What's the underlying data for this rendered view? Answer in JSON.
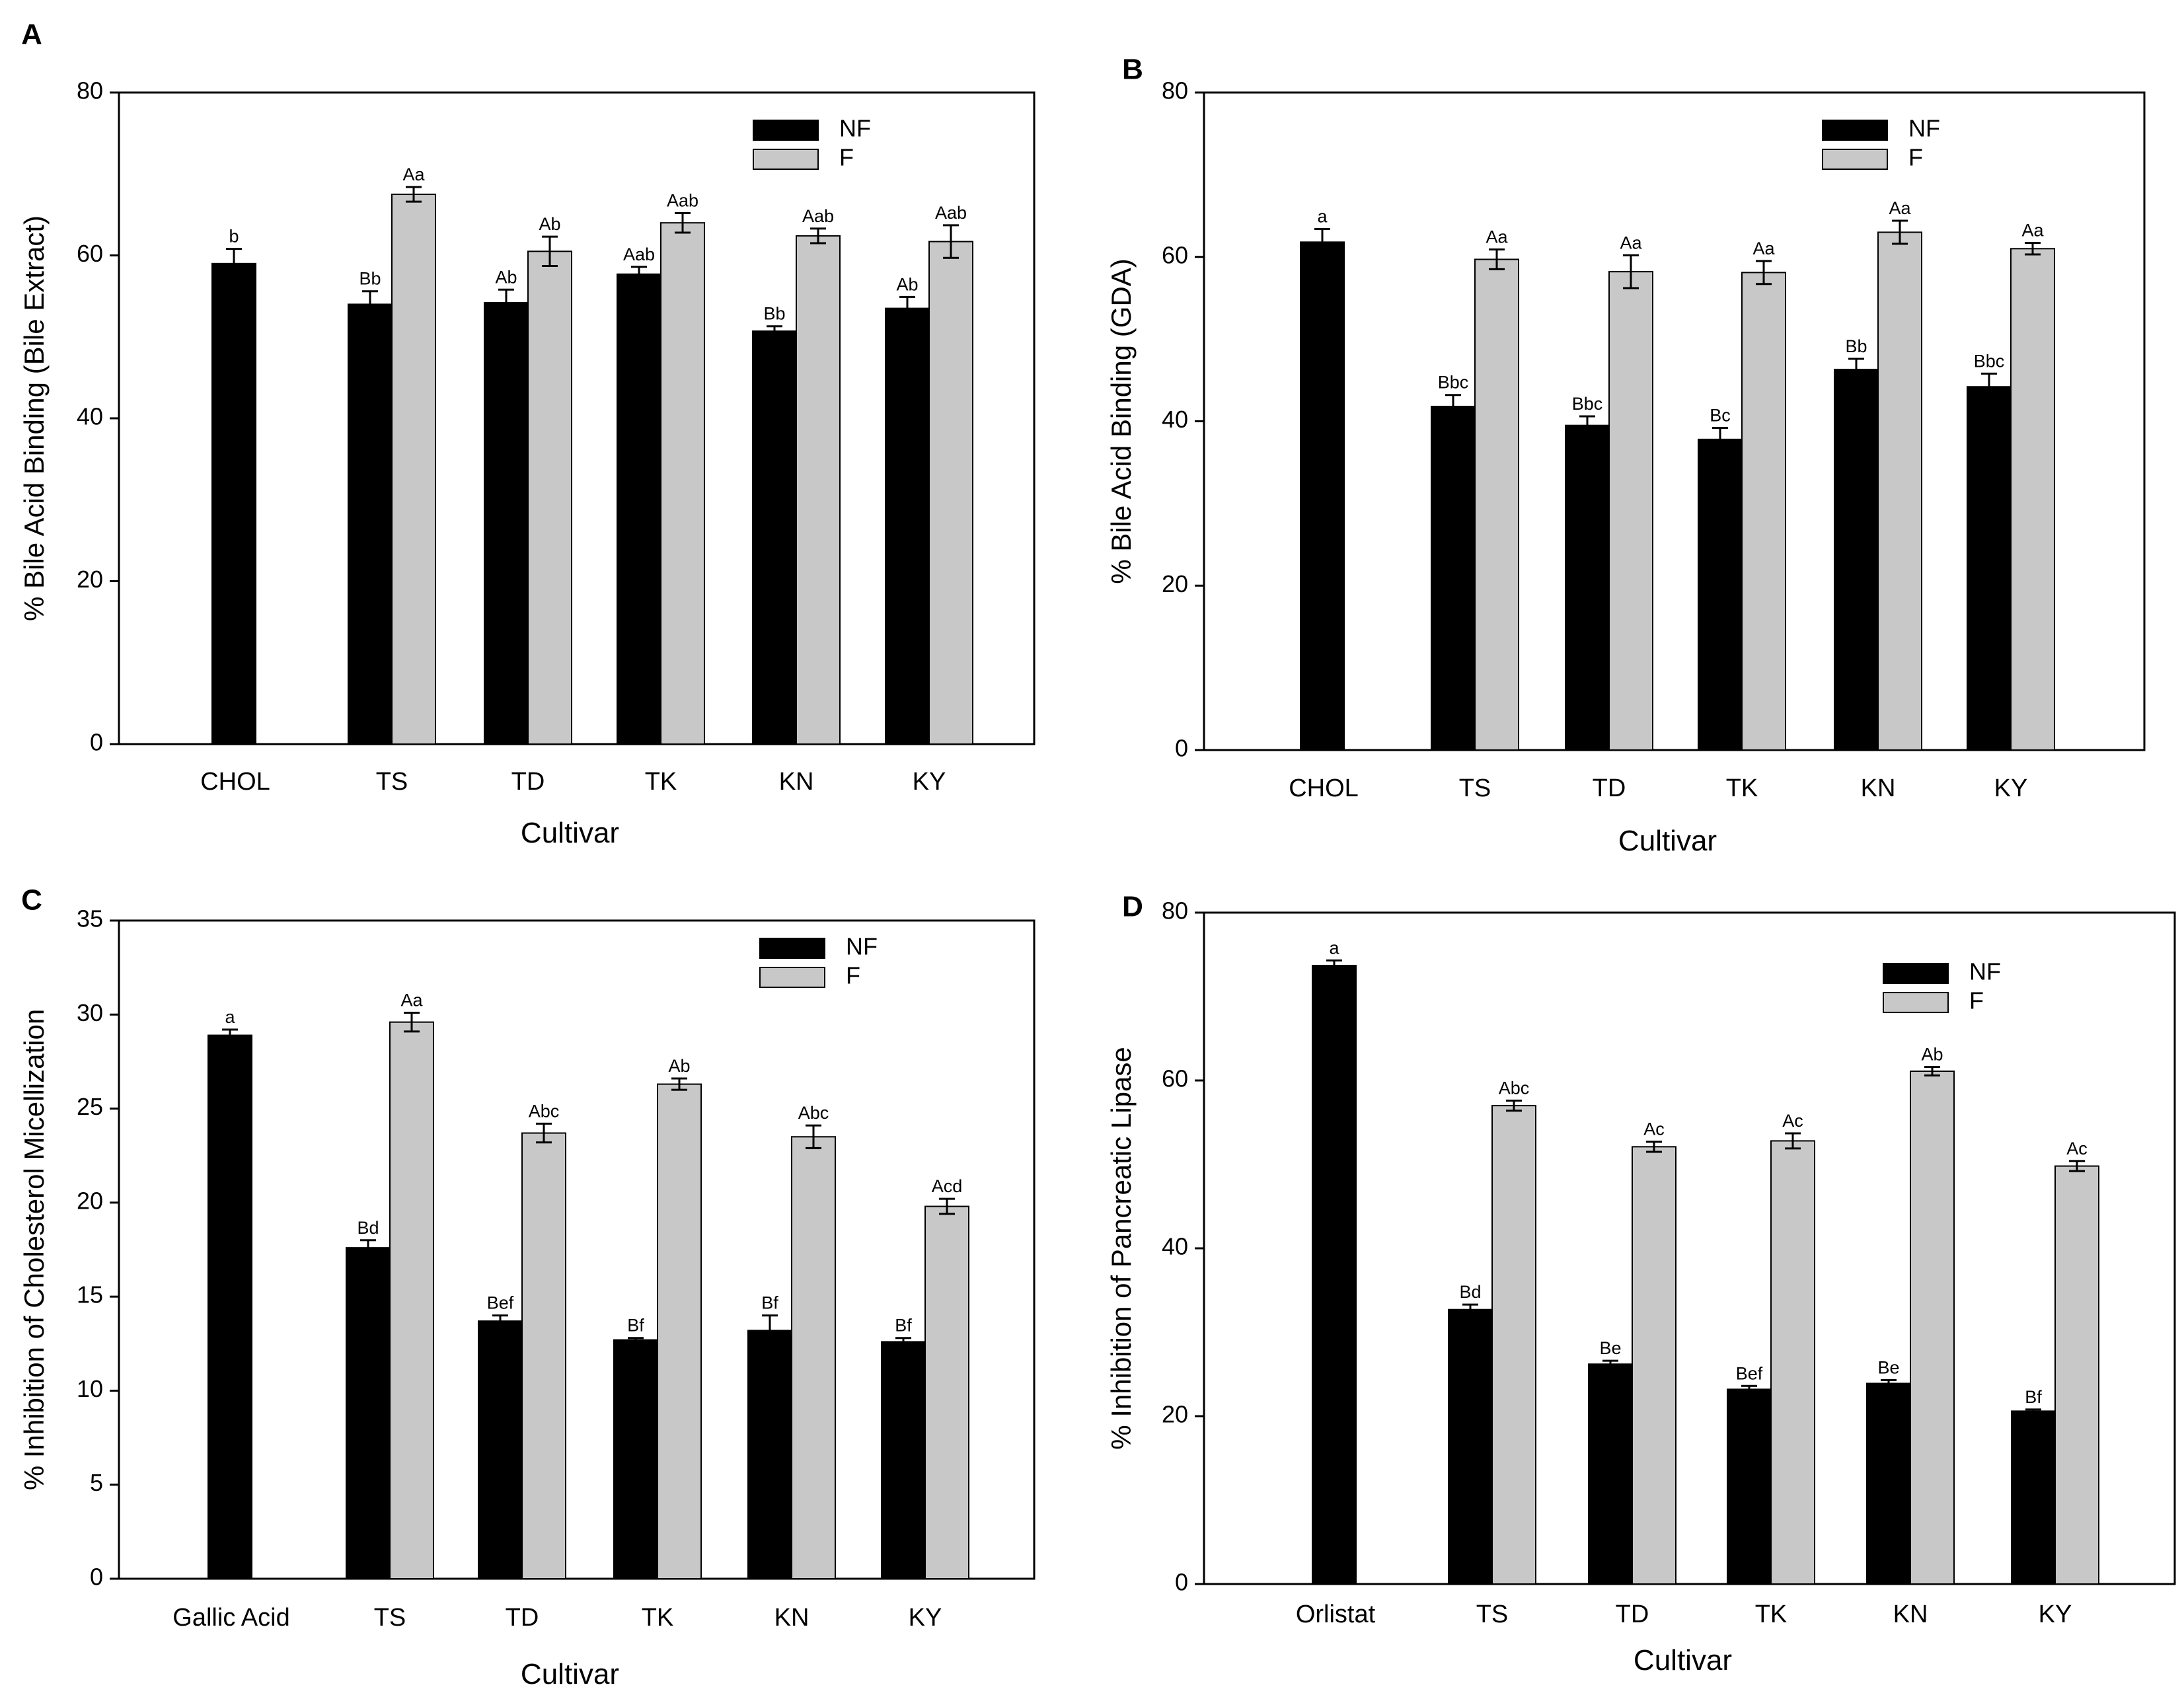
{
  "chart_data": [
    {
      "type": "bar",
      "panel_label": "A",
      "ylabel": "% Bile Acid Binding (Bile Extract)",
      "xlabel": "Cultivar",
      "ylim": [
        0,
        80
      ],
      "yticks": [
        "0",
        "20",
        "40",
        "60",
        "80"
      ],
      "reference": {
        "category": "CHOL",
        "value": 59.0,
        "error": 1.8,
        "label": "b"
      },
      "categories": [
        "TS",
        "TD",
        "TK",
        "KN",
        "KY"
      ],
      "series": [
        {
          "name": "NF",
          "color": "#000000",
          "values": [
            54.0,
            54.2,
            57.7,
            50.7,
            53.5
          ],
          "errors": [
            1.6,
            1.6,
            0.9,
            0.6,
            1.4
          ],
          "labels": [
            "Bb",
            "Ab",
            "Aab",
            "Bb",
            "Ab"
          ]
        },
        {
          "name": "F",
          "color": "#c8c8c8",
          "values": [
            67.5,
            60.5,
            64.0,
            62.4,
            61.7
          ],
          "errors": [
            0.9,
            1.8,
            1.2,
            0.9,
            2.0
          ],
          "labels": [
            "Aa",
            "Ab",
            "Aab",
            "Aab",
            "Aab"
          ]
        }
      ]
    },
    {
      "type": "bar",
      "panel_label": "B",
      "ylabel": "% Bile Acid Binding (GDA)",
      "xlabel": "Cultivar",
      "ylim": [
        0,
        80
      ],
      "yticks": [
        "0",
        "20",
        "40",
        "60",
        "80"
      ],
      "reference": {
        "category": "CHOL",
        "value": 61.8,
        "error": 1.6,
        "label": "a"
      },
      "categories": [
        "TS",
        "TD",
        "TK",
        "KN",
        "KY"
      ],
      "series": [
        {
          "name": "NF",
          "color": "#000000",
          "values": [
            41.8,
            39.5,
            37.8,
            46.3,
            44.2
          ],
          "errors": [
            1.4,
            1.1,
            1.4,
            1.3,
            1.6
          ],
          "labels": [
            "Bbc",
            "Bbc",
            "Bc",
            "Bb",
            "Bbc"
          ]
        },
        {
          "name": "F",
          "color": "#c8c8c8",
          "values": [
            59.7,
            58.2,
            58.1,
            63.0,
            61.0
          ],
          "errors": [
            1.2,
            2.0,
            1.4,
            1.4,
            0.7
          ],
          "labels": [
            "Aa",
            "Aa",
            "Aa",
            "Aa",
            "Aa"
          ]
        }
      ]
    },
    {
      "type": "bar",
      "panel_label": "C",
      "ylabel": "% Inhibition of Cholesterol Micellization",
      "xlabel": "Cultivar",
      "ylim": [
        0,
        35
      ],
      "yticks": [
        "0",
        "5",
        "10",
        "15",
        "20",
        "25",
        "30",
        "35"
      ],
      "reference": {
        "category": "Gallic Acid",
        "value": 28.9,
        "error": 0.3,
        "label": "a"
      },
      "categories": [
        "TS",
        "TD",
        "TK",
        "KN",
        "KY"
      ],
      "series": [
        {
          "name": "NF",
          "color": "#000000",
          "values": [
            17.6,
            13.7,
            12.7,
            13.2,
            12.6
          ],
          "errors": [
            0.4,
            0.3,
            0.1,
            0.8,
            0.2
          ],
          "labels": [
            "Bd",
            "Bef",
            "Bf",
            "Bf",
            "Bf"
          ]
        },
        {
          "name": "F",
          "color": "#c8c8c8",
          "values": [
            29.6,
            23.7,
            26.3,
            23.5,
            19.8
          ],
          "errors": [
            0.5,
            0.5,
            0.3,
            0.6,
            0.4
          ],
          "labels": [
            "Aa",
            "Abc",
            "Ab",
            "Abc",
            "Acd"
          ]
        }
      ]
    },
    {
      "type": "bar",
      "panel_label": "D",
      "ylabel": "% Inhibition of Pancreatic Lipase",
      "xlabel": "Cultivar",
      "ylim": [
        0,
        80
      ],
      "yticks": [
        "0",
        "20",
        "40",
        "60",
        "80"
      ],
      "reference": {
        "category": "Orlistat",
        "value": 73.7,
        "error": 0.6,
        "label": "a"
      },
      "categories": [
        "TS",
        "TD",
        "TK",
        "KN",
        "KY"
      ],
      "series": [
        {
          "name": "NF",
          "color": "#000000",
          "values": [
            32.7,
            26.2,
            23.2,
            23.9,
            20.6
          ],
          "errors": [
            0.6,
            0.4,
            0.4,
            0.4,
            0.2
          ],
          "labels": [
            "Bd",
            "Be",
            "Bef",
            "Be",
            "Bf"
          ]
        },
        {
          "name": "F",
          "color": "#c8c8c8",
          "values": [
            57.0,
            52.1,
            52.8,
            61.1,
            49.8
          ],
          "errors": [
            0.6,
            0.6,
            0.9,
            0.5,
            0.6
          ],
          "labels": [
            "Abc",
            "Ac",
            "Ac",
            "Ab",
            "Ac"
          ]
        }
      ]
    }
  ]
}
